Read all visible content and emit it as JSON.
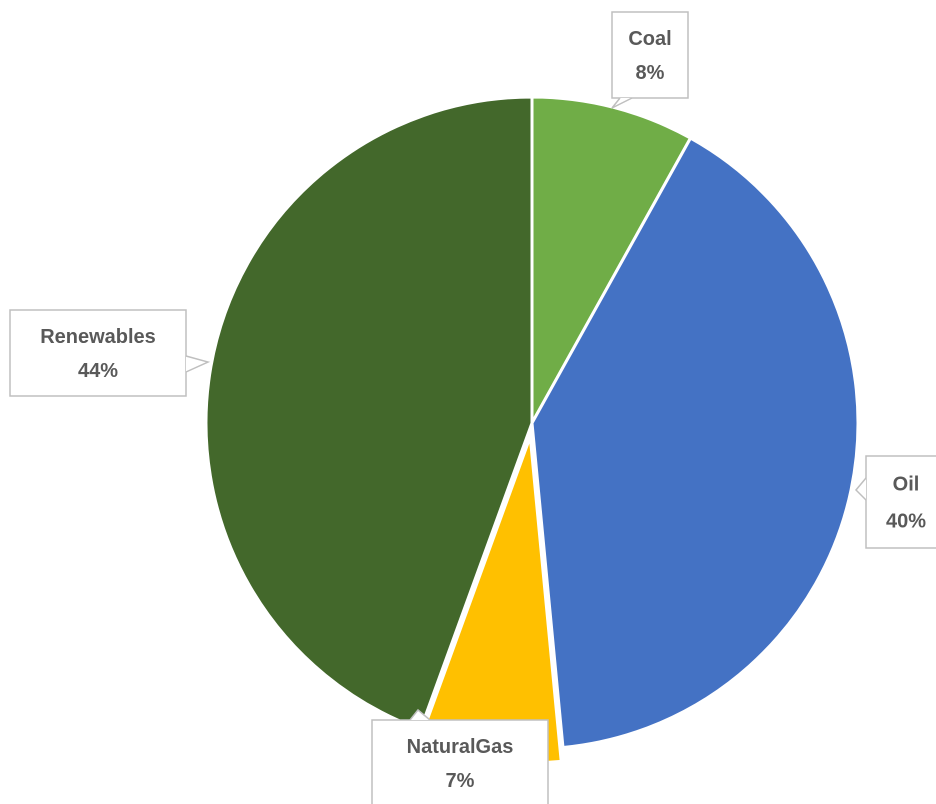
{
  "chart_data": {
    "type": "pie",
    "title": "",
    "slices": [
      {
        "label": "Coal",
        "value": 8,
        "display": "8%",
        "color": "#70AD47"
      },
      {
        "label": "Oil",
        "value": 40,
        "display": "40%",
        "color": "#4472C4"
      },
      {
        "label": "NaturalGas",
        "value": 7,
        "display": "7%",
        "color": "#FFC000",
        "exploded": true
      },
      {
        "label": "Renewables",
        "value": 44,
        "display": "44%",
        "color": "#43682B"
      }
    ],
    "start_angle_deg": 0,
    "direction": "clockwise",
    "legend": "none",
    "data_labels": "callouts"
  }
}
